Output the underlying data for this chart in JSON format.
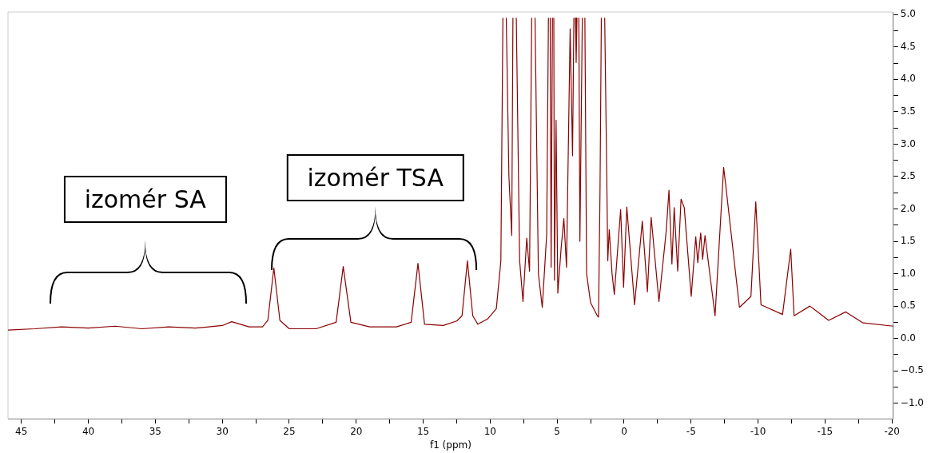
{
  "chart_data": {
    "type": "line",
    "xlabel": "f1 (ppm)",
    "annotations": [
      "izomér SA",
      "izomér TSA"
    ],
    "xlim": [
      46.0,
      -20.1
    ],
    "ylim": [
      -1.24,
      5.04
    ],
    "xticks": [
      45,
      {
        "value": 42.5,
        "label": null
      },
      40,
      {
        "value": 37.5,
        "label": null
      },
      35,
      {
        "value": 32.5,
        "label": null
      },
      30,
      {
        "value": 27.5,
        "label": null
      },
      25,
      {
        "value": 22.5,
        "label": null
      },
      20,
      {
        "value": 17.5,
        "label": null
      },
      15,
      {
        "value": 12.5,
        "label": null
      },
      10,
      {
        "value": 7.5,
        "label": null
      },
      5,
      {
        "value": 2.5,
        "label": null
      },
      0,
      {
        "value": -2.5,
        "label": null
      },
      -5,
      {
        "value": -7.5,
        "label": null
      },
      -10,
      {
        "value": -12.5,
        "label": null
      },
      -15,
      {
        "value": -17.5,
        "label": null
      },
      -20
    ],
    "yticks": [
      {
        "value": 5,
        "label": "5.0"
      },
      {
        "value": 4.75,
        "label": null
      },
      {
        "value": 4.5,
        "label": "4.5"
      },
      {
        "value": 4.25,
        "label": null
      },
      {
        "value": 4,
        "label": "4.0"
      },
      {
        "value": 3.75,
        "label": null
      },
      {
        "value": 3.5,
        "label": "3.5"
      },
      {
        "value": 3.25,
        "label": null
      },
      {
        "value": 3,
        "label": "3.0"
      },
      {
        "value": 2.75,
        "label": null
      },
      {
        "value": 2.5,
        "label": "2.5"
      },
      {
        "value": 2.25,
        "label": null
      },
      {
        "value": 2,
        "label": "2.0"
      },
      {
        "value": 1.75,
        "label": null
      },
      {
        "value": 1.5,
        "label": "1.5"
      },
      {
        "value": 1.25,
        "label": null
      },
      {
        "value": 1,
        "label": "1.0"
      },
      {
        "value": 0.75,
        "label": null
      },
      {
        "value": 0.5,
        "label": "0.5"
      },
      {
        "value": 0.25,
        "label": null
      },
      {
        "value": 0,
        "label": "0.0"
      },
      {
        "value": -0.25,
        "label": null
      },
      {
        "value": -0.5,
        "label": "−0.5"
      },
      {
        "value": -0.75,
        "label": null
      },
      {
        "value": -1,
        "label": "−1.0"
      }
    ],
    "grid": false,
    "legend": false,
    "marker": "none",
    "line_style": "solid",
    "series": [
      {
        "color": "#8b0000",
        "x": [
          46.0,
          44,
          42,
          40,
          38,
          36,
          34,
          32,
          30,
          29.3,
          28,
          27,
          26.6,
          26.15,
          25.7,
          25,
          23,
          21.5,
          20.97,
          20.4,
          19,
          17,
          15.9,
          15.39,
          14.9,
          13.5,
          12.5,
          12.1,
          11.7,
          11.3,
          10.92,
          10.2,
          9.54,
          9.2,
          9.05,
          8.92,
          8.8,
          8.6,
          8.39,
          8.3,
          8.18,
          8.05,
          7.8,
          7.55,
          7.27,
          7.06,
          6.9,
          6.78,
          6.65,
          6.4,
          6.11,
          5.78,
          5.65,
          5.6,
          5.52,
          5.45,
          5.35,
          5.3,
          5.25,
          5.2,
          5.08,
          4.95,
          4.7,
          4.5,
          4.3,
          4.03,
          3.85,
          3.75,
          3.7,
          3.63,
          3.58,
          3.52,
          3.45,
          3.38,
          3.3,
          3.12,
          3.03,
          2.93,
          2.8,
          2.5,
          2.0,
          1.91,
          1.8,
          1.7,
          1.58,
          1.45,
          1.33,
          1.22,
          1.11,
          0.9,
          0.73,
          0.26,
          0.04,
          -0.2,
          -0.78,
          -1.36,
          -1.74,
          -2.02,
          -2.6,
          -3.14,
          -3.35,
          -3.57,
          -3.74,
          -4.0,
          -4.25,
          -4.49,
          -5.01,
          -5.35,
          -5.5,
          -5.72,
          -5.86,
          -6.04,
          -6.79,
          -7.43,
          -7.58,
          -8.61,
          -9.47,
          -9.83,
          -10.22,
          -11.83,
          -12.44,
          -12.69,
          -13.87,
          -15.27,
          -16.55,
          -17.84,
          -20.1
        ],
        "values": [
          0.13,
          0.15,
          0.18,
          0.16,
          0.19,
          0.15,
          0.18,
          0.16,
          0.2,
          0.26,
          0.18,
          0.18,
          0.28,
          1.09,
          0.28,
          0.15,
          0.15,
          0.25,
          1.11,
          0.25,
          0.18,
          0.18,
          0.25,
          1.16,
          0.22,
          0.2,
          0.27,
          0.35,
          1.2,
          0.35,
          0.22,
          0.3,
          0.46,
          1.2,
          4.95,
          null,
          4.95,
          2.5,
          1.59,
          4.95,
          null,
          4.95,
          1.2,
          0.57,
          1.55,
          1.04,
          4.95,
          null,
          4.95,
          1.0,
          0.48,
          1.61,
          4.95,
          null,
          4.95,
          1.1,
          4.95,
          null,
          4.95,
          0.9,
          3.37,
          0.7,
          1.4,
          1.85,
          1.1,
          4.78,
          2.82,
          4.95,
          null,
          4.95,
          4.26,
          4.95,
          null,
          4.95,
          1.5,
          4.95,
          null,
          4.95,
          1.0,
          0.55,
          0.35,
          0.33,
          2.25,
          4.95,
          null,
          4.95,
          3.08,
          1.2,
          1.68,
          1.0,
          0.68,
          1.99,
          0.79,
          2.03,
          0.52,
          1.81,
          0.72,
          1.87,
          0.57,
          1.65,
          2.29,
          1.15,
          2.02,
          1.04,
          2.15,
          2.02,
          0.65,
          1.57,
          1.17,
          1.63,
          1.22,
          1.59,
          0.35,
          2.64,
          2.38,
          0.48,
          0.65,
          2.11,
          0.52,
          0.37,
          1.38,
          0.35,
          0.5,
          0.28,
          0.41,
          0.24,
          0.19
        ]
      }
    ]
  }
}
